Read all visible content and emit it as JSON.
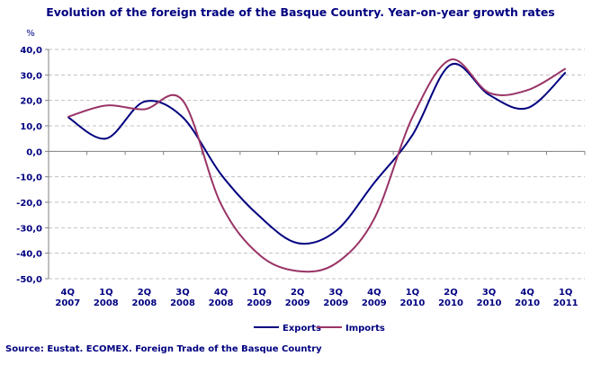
{
  "chart_data": {
    "type": "line",
    "title": "Evolution of the foreign trade of the Basque Country. Year-on-year growth rates",
    "ylabel": "%",
    "xlabel": "",
    "ylim": [
      -50,
      40
    ],
    "yticks": [
      "40,0",
      "30,0",
      "20,0",
      "10,0",
      "0,0",
      "-10,0",
      "-20,0",
      "-30,0",
      "-40,0",
      "-50,0"
    ],
    "ytick_values": [
      40,
      30,
      20,
      10,
      0,
      -10,
      -20,
      -30,
      -40,
      -50
    ],
    "grid": true,
    "legend": "bottom",
    "categories": [
      [
        "4Q",
        "2007"
      ],
      [
        "1Q",
        "2008"
      ],
      [
        "2Q",
        "2008"
      ],
      [
        "3Q",
        "2008"
      ],
      [
        "4Q",
        "2008"
      ],
      [
        "1Q",
        "2009"
      ],
      [
        "2Q",
        "2009"
      ],
      [
        "3Q",
        "2009"
      ],
      [
        "4Q",
        "2009"
      ],
      [
        "1Q",
        "2010"
      ],
      [
        "2Q",
        "2010"
      ],
      [
        "3Q",
        "2010"
      ],
      [
        "4Q",
        "2010"
      ],
      [
        "1Q",
        "2011"
      ]
    ],
    "series": [
      {
        "name": "Exports",
        "color": "#000080",
        "values": [
          13.5,
          5,
          19.5,
          13.4,
          -9,
          -25.4,
          -36,
          -31.3,
          -12.4,
          6.4,
          34,
          22.2,
          17,
          31
        ]
      },
      {
        "name": "Imports",
        "color": "#993366",
        "values": [
          13.5,
          18,
          16.5,
          20,
          -20.7,
          -40.6,
          -47,
          -44,
          -26.5,
          13.4,
          36,
          23,
          24,
          32.5
        ]
      }
    ]
  },
  "source": "Source: Eustat. ECOMEX. Foreign Trade of the Basque Country"
}
